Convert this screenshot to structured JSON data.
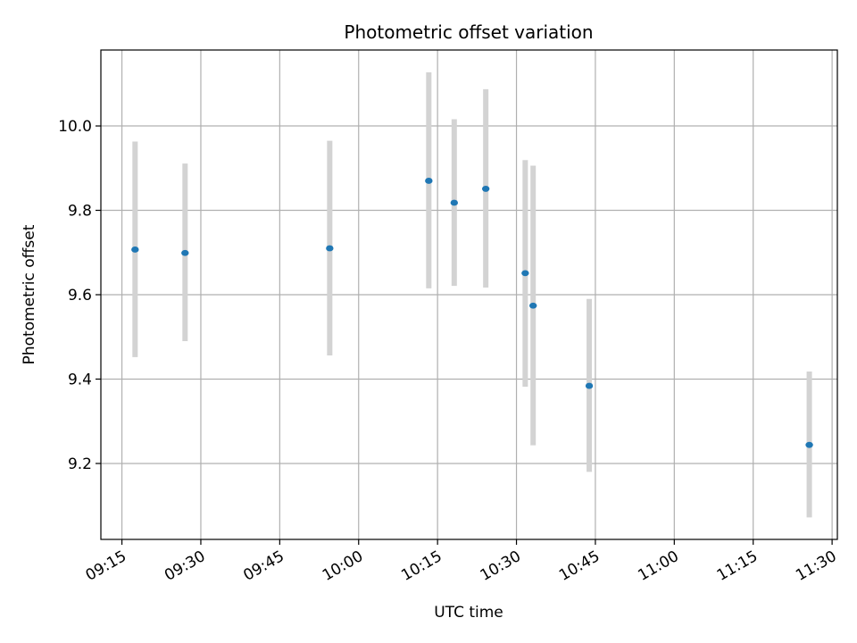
{
  "chart_data": {
    "type": "scatter",
    "title": "Photometric offset variation",
    "xlabel": "UTC time",
    "ylabel": "Photometric offset",
    "x_ticks": [
      "09:15",
      "09:30",
      "09:45",
      "10:00",
      "10:15",
      "10:30",
      "10:45",
      "11:00",
      "11:15",
      "11:30"
    ],
    "y_ticks": [
      "9.2",
      "9.4",
      "9.6",
      "9.8",
      "10.0"
    ],
    "xlim": [
      "09:11",
      "11:31"
    ],
    "ylim": [
      9.02,
      10.18
    ],
    "grid": true,
    "series": [
      {
        "marker_color": "#1f77b4",
        "errorbar_color": "#d3d3d3",
        "points": [
          {
            "x": "09:17:30",
            "y": 9.707,
            "ylow": 9.452,
            "yhigh": 9.963
          },
          {
            "x": "09:27:00",
            "y": 9.699,
            "ylow": 9.49,
            "yhigh": 9.911
          },
          {
            "x": "09:54:30",
            "y": 9.71,
            "ylow": 9.456,
            "yhigh": 9.965
          },
          {
            "x": "10:13:20",
            "y": 9.87,
            "ylow": 9.615,
            "yhigh": 10.127
          },
          {
            "x": "10:18:10",
            "y": 9.818,
            "ylow": 9.621,
            "yhigh": 10.016
          },
          {
            "x": "10:24:10",
            "y": 9.851,
            "ylow": 9.617,
            "yhigh": 10.087
          },
          {
            "x": "10:31:40",
            "y": 9.651,
            "ylow": 9.382,
            "yhigh": 9.919
          },
          {
            "x": "10:33:10",
            "y": 9.574,
            "ylow": 9.243,
            "yhigh": 9.906
          },
          {
            "x": "10:43:50",
            "y": 9.384,
            "ylow": 9.18,
            "yhigh": 9.59
          },
          {
            "x": "11:25:40",
            "y": 9.244,
            "ylow": 9.072,
            "yhigh": 9.418
          }
        ]
      }
    ]
  }
}
